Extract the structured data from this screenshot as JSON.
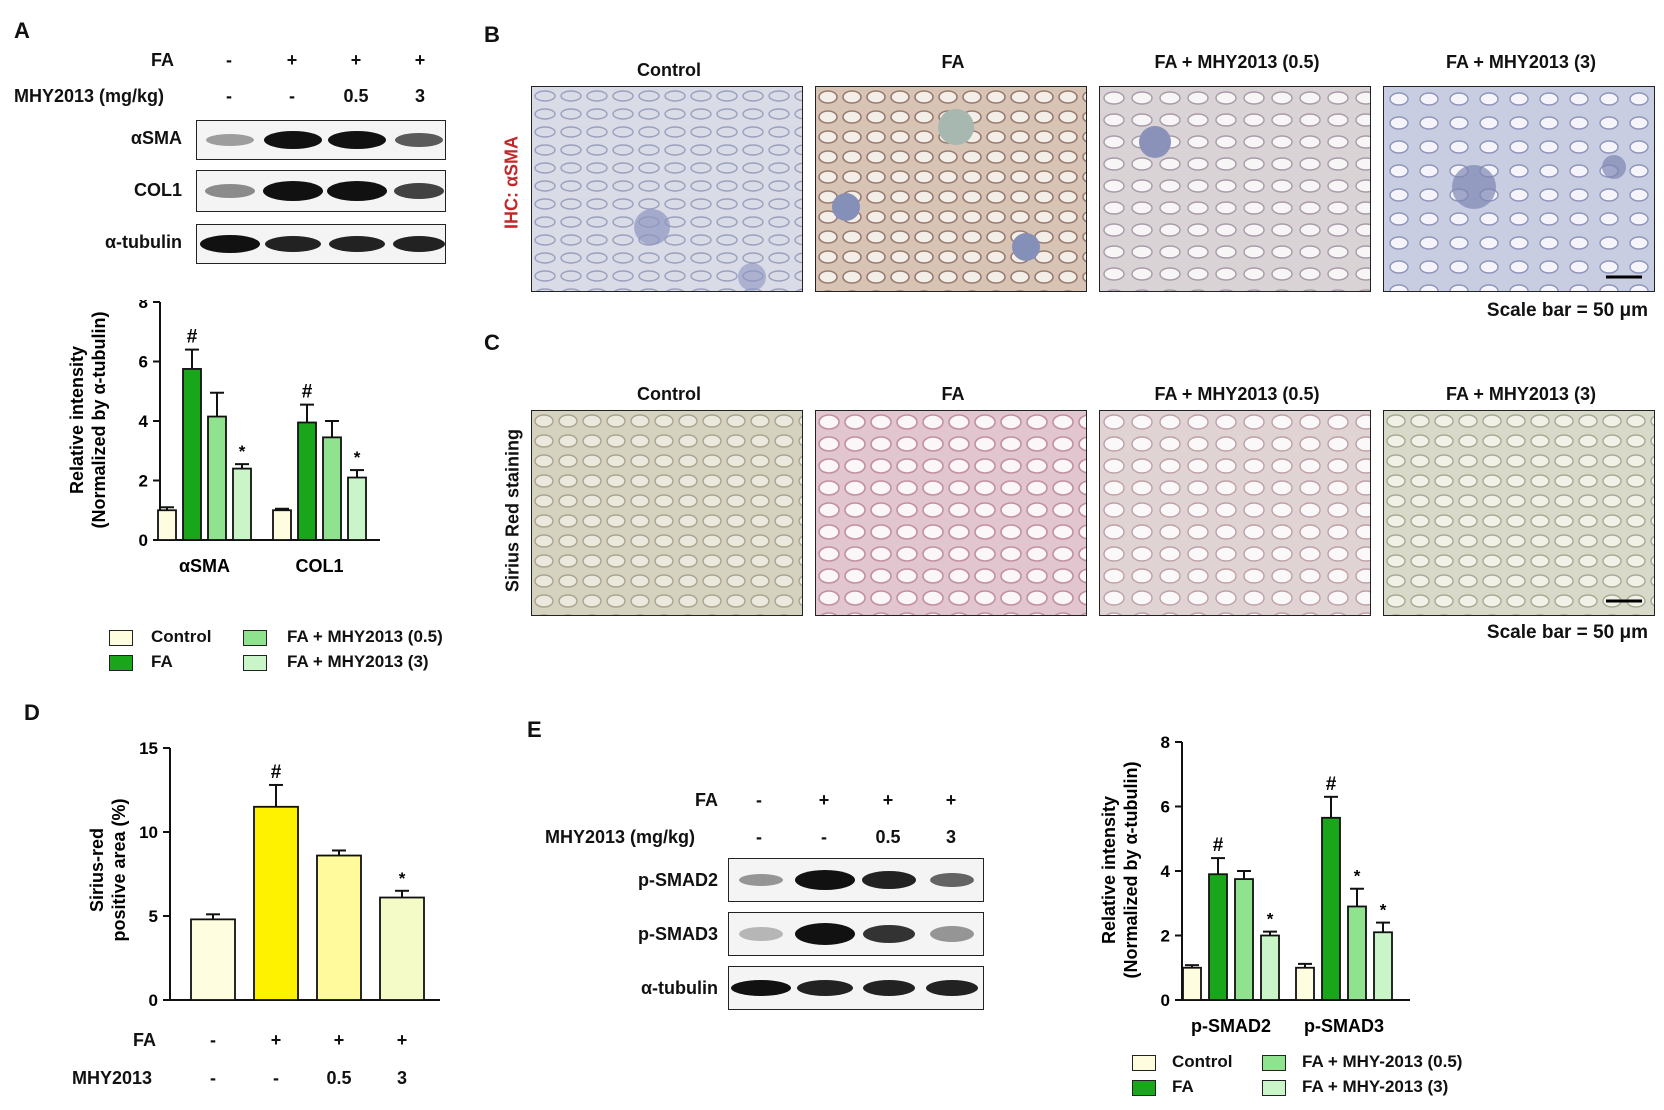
{
  "panels": {
    "A": "A",
    "B": "B",
    "C": "C",
    "D": "D",
    "E": "E"
  },
  "colors": {
    "control": "#FFFDE0",
    "fa_green": "#1AA61A",
    "mhy05_green": "#8FE38F",
    "mhy3_green": "#C9F5C9",
    "fa_yellow": "#FFF200",
    "mhy05_yellow": "#FFFA9C",
    "mhy3_yellow": "#F4FBC6"
  },
  "panelA": {
    "rows": [
      {
        "label": "FA",
        "values": [
          "-",
          "+",
          "+",
          "+"
        ]
      },
      {
        "label": "MHY2013 (mg/kg)",
        "values": [
          "-",
          "-",
          "0.5",
          "3"
        ]
      }
    ],
    "blots": [
      "αSMA",
      "COL1",
      "α-tubulin"
    ],
    "legend": [
      "Control",
      "FA",
      "FA + MHY2013 (0.5)",
      "FA + MHY2013 (3)"
    ]
  },
  "panelB": {
    "titles": [
      "Control",
      "FA",
      "FA + MHY2013 (0.5)",
      "FA + MHY2013 (3)"
    ],
    "side_label": "IHC: αSMA",
    "scale": "Scale bar = 50 μm"
  },
  "panelC": {
    "titles": [
      "Control",
      "FA",
      "FA + MHY2013 (0.5)",
      "FA + MHY2013 (3)"
    ],
    "side_label": "Sirius Red staining",
    "scale": "Scale bar = 50 μm"
  },
  "panelD": {
    "rows": [
      {
        "label": "FA",
        "values": [
          "-",
          "+",
          "+",
          "+"
        ]
      },
      {
        "label": "MHY2013",
        "values": [
          "-",
          "-",
          "0.5",
          "3"
        ]
      }
    ]
  },
  "panelE": {
    "rows": [
      {
        "label": "FA",
        "values": [
          "-",
          "+",
          "+",
          "+"
        ]
      },
      {
        "label": "MHY2013 (mg/kg)",
        "values": [
          "-",
          "-",
          "0.5",
          "3"
        ]
      }
    ],
    "blots": [
      "p-SMAD2",
      "p-SMAD3",
      "α-tubulin"
    ],
    "legend": [
      "Control",
      "FA",
      "FA + MHY-2013 (0.5)",
      "FA + MHY-2013 (3)"
    ]
  },
  "chart_data": [
    {
      "id": "A",
      "type": "bar",
      "categories": [
        "αSMA",
        "COL1"
      ],
      "ylabel": "Relative intensity\n(Normalized by α-tubulin)",
      "ylim": [
        0,
        8
      ],
      "yticks": [
        0,
        2,
        4,
        6,
        8
      ],
      "series": [
        {
          "name": "Control",
          "values": [
            1.0,
            1.0
          ],
          "errors": [
            0.1,
            0.05
          ],
          "marks": [
            "",
            ""
          ]
        },
        {
          "name": "FA",
          "values": [
            5.75,
            3.95
          ],
          "errors": [
            0.65,
            0.6
          ],
          "marks": [
            "#",
            "#"
          ]
        },
        {
          "name": "FA + MHY2013 (0.5)",
          "values": [
            4.15,
            3.45
          ],
          "errors": [
            0.8,
            0.55
          ],
          "marks": [
            "",
            ""
          ]
        },
        {
          "name": "FA + MHY2013 (3)",
          "values": [
            2.4,
            2.1
          ],
          "errors": [
            0.15,
            0.25
          ],
          "marks": [
            "*",
            "*"
          ]
        }
      ]
    },
    {
      "id": "D",
      "type": "bar",
      "categories": [
        "Control",
        "FA",
        "FA + MHY2013 (0.5)",
        "FA + MHY2013 (3)"
      ],
      "ylabel": "Sirius-red\npositive area (%)",
      "ylim": [
        0,
        15
      ],
      "yticks": [
        0,
        5,
        10,
        15
      ],
      "values": [
        4.8,
        11.5,
        8.6,
        6.1
      ],
      "errors": [
        0.3,
        1.3,
        0.3,
        0.4
      ],
      "marks": [
        "",
        "#",
        "",
        "*"
      ]
    },
    {
      "id": "E",
      "type": "bar",
      "categories": [
        "p-SMAD2",
        "p-SMAD3"
      ],
      "ylabel": "Relative intensity\n(Normalized by α-tubulin)",
      "ylim": [
        0,
        8
      ],
      "yticks": [
        0,
        2,
        4,
        6,
        8
      ],
      "series": [
        {
          "name": "Control",
          "values": [
            1.0,
            1.0
          ],
          "errors": [
            0.08,
            0.12
          ],
          "marks": [
            "",
            ""
          ]
        },
        {
          "name": "FA",
          "values": [
            3.9,
            5.65
          ],
          "errors": [
            0.5,
            0.65
          ],
          "marks": [
            "#",
            "#"
          ]
        },
        {
          "name": "FA + MHY-2013 (0.5)",
          "values": [
            3.75,
            2.9
          ],
          "errors": [
            0.25,
            0.55
          ],
          "marks": [
            "",
            "*"
          ]
        },
        {
          "name": "FA + MHY-2013 (3)",
          "values": [
            2.0,
            2.1
          ],
          "errors": [
            0.12,
            0.3
          ],
          "marks": [
            "*",
            "*"
          ]
        }
      ]
    }
  ]
}
